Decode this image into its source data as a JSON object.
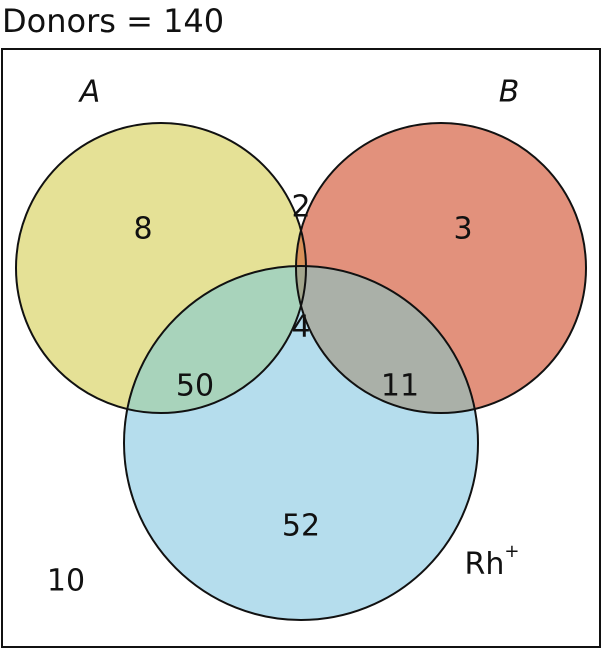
{
  "title": "Donors = 140",
  "sets": {
    "a": {
      "label": "A",
      "color": "#e5e196"
    },
    "b": {
      "label": "B",
      "color": "#e2917c"
    },
    "rh": {
      "label": "Rh",
      "superscript": "+",
      "color": "#b5dded"
    }
  },
  "regions": {
    "a_only": "8",
    "b_only": "3",
    "a_b_only": "2",
    "a_b_rh": "4",
    "a_rh_only": "50",
    "b_rh_only": "11",
    "rh_only": "52",
    "outside": "10"
  },
  "colors": {
    "a_b": "#d99159",
    "a_rh": "#a8d3bb",
    "b_rh": "#aab0a8",
    "a_b_rh": "#a3a68d"
  }
}
